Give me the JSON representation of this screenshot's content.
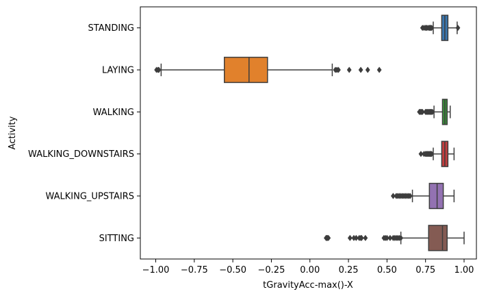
{
  "chart_data": {
    "type": "box",
    "orientation": "horizontal",
    "title": "",
    "xlabel": "tGravityAcc-max()-X",
    "ylabel": "Activity",
    "xlim": [
      -1.1,
      1.08
    ],
    "x_ticks": [
      -1.0,
      -0.75,
      -0.5,
      -0.25,
      0.0,
      0.25,
      0.5,
      0.75,
      1.0
    ],
    "x_tick_labels": [
      "−1.00",
      "−0.75",
      "−0.50",
      "−0.25",
      "0.00",
      "0.25",
      "0.50",
      "0.75",
      "1.00"
    ],
    "grid": false,
    "categories": [
      "STANDING",
      "LAYING",
      "WALKING",
      "WALKING_DOWNSTAIRS",
      "WALKING_UPSTAIRS",
      "SITTING"
    ],
    "series": [
      {
        "category": "STANDING",
        "color": "#3a76ae",
        "whisker_low": 0.8,
        "q1": 0.855,
        "median": 0.875,
        "q3": 0.895,
        "whisker_high": 0.955,
        "outliers": [
          0.73,
          0.74,
          0.75,
          0.755,
          0.76,
          0.77,
          0.775,
          0.78,
          0.785,
          0.79,
          0.96
        ]
      },
      {
        "category": "LAYING",
        "color": "#e1812c",
        "whisker_low": -0.965,
        "q1": -0.555,
        "median": -0.395,
        "q3": -0.275,
        "whisker_high": 0.145,
        "outliers": [
          -0.995,
          -0.985,
          -0.98,
          0.165,
          0.175,
          0.185,
          0.255,
          0.33,
          0.375,
          0.45
        ]
      },
      {
        "category": "WALKING",
        "color": "#3a923a",
        "whisker_low": 0.805,
        "q1": 0.86,
        "median": 0.875,
        "q3": 0.89,
        "whisker_high": 0.91,
        "outliers": [
          0.71,
          0.715,
          0.72,
          0.725,
          0.73,
          0.75,
          0.755,
          0.76,
          0.765,
          0.77,
          0.775,
          0.78,
          0.785,
          0.79,
          0.795
        ]
      },
      {
        "category": "WALKING_DOWNSTAIRS",
        "color": "#c03d3e",
        "whisker_low": 0.8,
        "q1": 0.855,
        "median": 0.875,
        "q3": 0.895,
        "whisker_high": 0.935,
        "outliers": [
          0.72,
          0.74,
          0.75,
          0.755,
          0.76,
          0.765,
          0.77,
          0.775,
          0.78,
          0.785,
          0.79
        ]
      },
      {
        "category": "WALKING_UPSTAIRS",
        "color": "#9372b2",
        "whisker_low": 0.665,
        "q1": 0.775,
        "median": 0.825,
        "q3": 0.865,
        "whisker_high": 0.935,
        "outliers": [
          0.54,
          0.56,
          0.57,
          0.58,
          0.59,
          0.6,
          0.61,
          0.62,
          0.63,
          0.64,
          0.65
        ]
      },
      {
        "category": "SITTING",
        "color": "#845b53",
        "whisker_low": 0.59,
        "q1": 0.77,
        "median": 0.86,
        "q3": 0.89,
        "whisker_high": 1.0,
        "outliers": [
          0.105,
          0.11,
          0.115,
          0.12,
          0.26,
          0.285,
          0.3,
          0.32,
          0.33,
          0.335,
          0.36,
          0.48,
          0.49,
          0.5,
          0.52,
          0.54,
          0.55,
          0.56,
          0.57,
          0.58,
          0.59
        ]
      }
    ]
  }
}
